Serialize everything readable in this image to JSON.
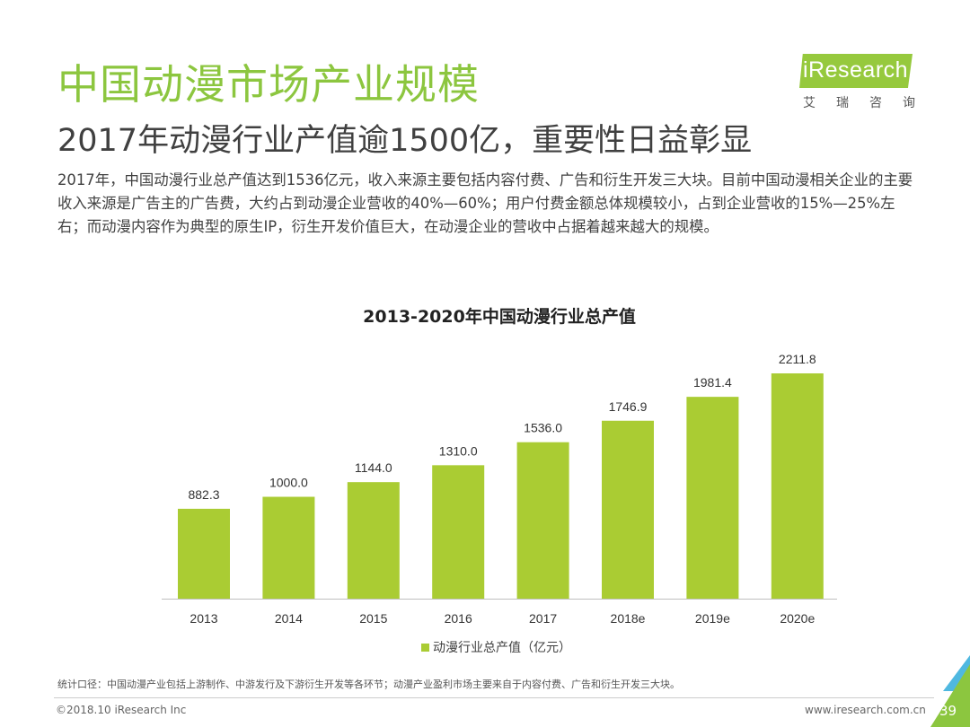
{
  "header": {
    "title": "中国动漫市场产业规模",
    "subtitle": "2017年动漫行业产值逾1500亿，重要性日益彰显"
  },
  "logo": {
    "text": "iResearch",
    "cn": "艾瑞咨询"
  },
  "summary": "2017年，中国动漫行业总产值达到1536亿元，收入来源主要包括内容付费、广告和衍生开发三大块。目前中国动漫相关企业的主要收入来源是广告主的广告费，大约占到动漫企业营收的40%—60%；用户付费金额总体规模较小，占到企业营收的15%—25%左右；而动漫内容作为典型的原生IP，衍生开发价值巨大，在动漫企业的营收中占据着越来越大的规模。",
  "chart_data": {
    "type": "bar",
    "title": "2013-2020年中国动漫行业总产值",
    "categories": [
      "2013",
      "2014",
      "2015",
      "2016",
      "2017",
      "2018e",
      "2019e",
      "2020e"
    ],
    "series": [
      {
        "name": "动漫行业总产值（亿元）",
        "values": [
          882.3,
          1000.0,
          1144.0,
          1310.0,
          1536.0,
          1746.9,
          1981.4,
          2211.8
        ],
        "labels": [
          "882.3",
          "1000.0",
          "1144.0",
          "1310.0",
          "1536.0",
          "1746.9",
          "1981.4",
          "2211.8"
        ]
      }
    ],
    "ylim": [
      0,
      2211.8
    ],
    "grid": false,
    "legend": "bottom",
    "bar_color": "#aacc33",
    "xlabel": "",
    "ylabel": ""
  },
  "footnote": "统计口径：中国动漫产业包括上游制作、中游发行及下游衍生开发等各环节；动漫产业盈利市场主要来自于内容付费、广告和衍生开发三大块。",
  "footer": {
    "left": "©2018.10 iResearch Inc",
    "right": "www.iresearch.com.cn",
    "page": "39"
  },
  "colors": {
    "accent": "#8cc63f",
    "bar": "#aacc33",
    "text": "#404040"
  }
}
